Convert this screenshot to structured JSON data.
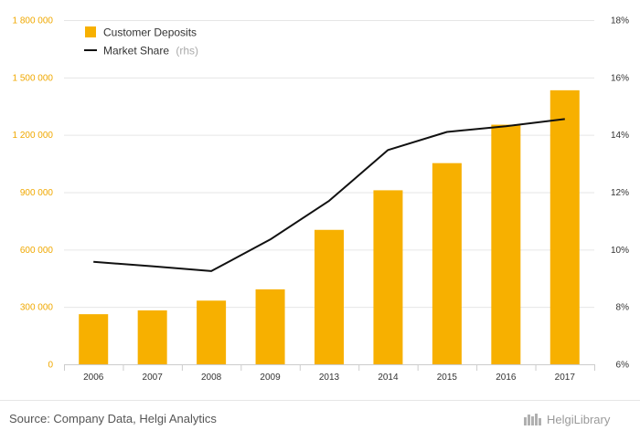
{
  "chart_data": {
    "type": "bar",
    "categories": [
      "2006",
      "2007",
      "2008",
      "2009",
      "2013",
      "2014",
      "2015",
      "2016",
      "2017"
    ],
    "series": [
      {
        "name": "Customer Deposits",
        "type": "bar",
        "axis": "left",
        "color": "#f7b000",
        "values": [
          262000,
          282000,
          333000,
          392000,
          703000,
          910000,
          1052000,
          1253000,
          1433000
        ]
      },
      {
        "name": "Market Share",
        "type": "line",
        "axis": "right",
        "color": "#111111",
        "values": [
          9.57,
          9.42,
          9.25,
          10.35,
          11.7,
          13.47,
          14.1,
          14.3,
          14.55
        ]
      }
    ],
    "legend_suffix": "(rhs)",
    "left_axis": {
      "ylim": [
        0,
        1800000
      ],
      "ticks": [
        0,
        300000,
        600000,
        900000,
        1200000,
        1500000,
        1800000
      ],
      "tick_labels": [
        "0",
        "300 000",
        "600 000",
        "900 000",
        "1 200 000",
        "1 500 000",
        "1 800 000"
      ]
    },
    "right_axis": {
      "ylim": [
        6,
        18
      ],
      "ticks": [
        6,
        8,
        10,
        12,
        14,
        16,
        18
      ],
      "tick_labels": [
        "6%",
        "8%",
        "10%",
        "12%",
        "14%",
        "16%",
        "18%"
      ]
    },
    "grid": true,
    "legend_position": "top-left"
  },
  "footer": {
    "source": "Source: Company Data, Helgi Analytics",
    "brand": "HelgiLibrary"
  },
  "colors": {
    "bar": "#f7b000",
    "line": "#111111",
    "left_ticks": "#f0a800",
    "grid": "#e6e6e6"
  }
}
